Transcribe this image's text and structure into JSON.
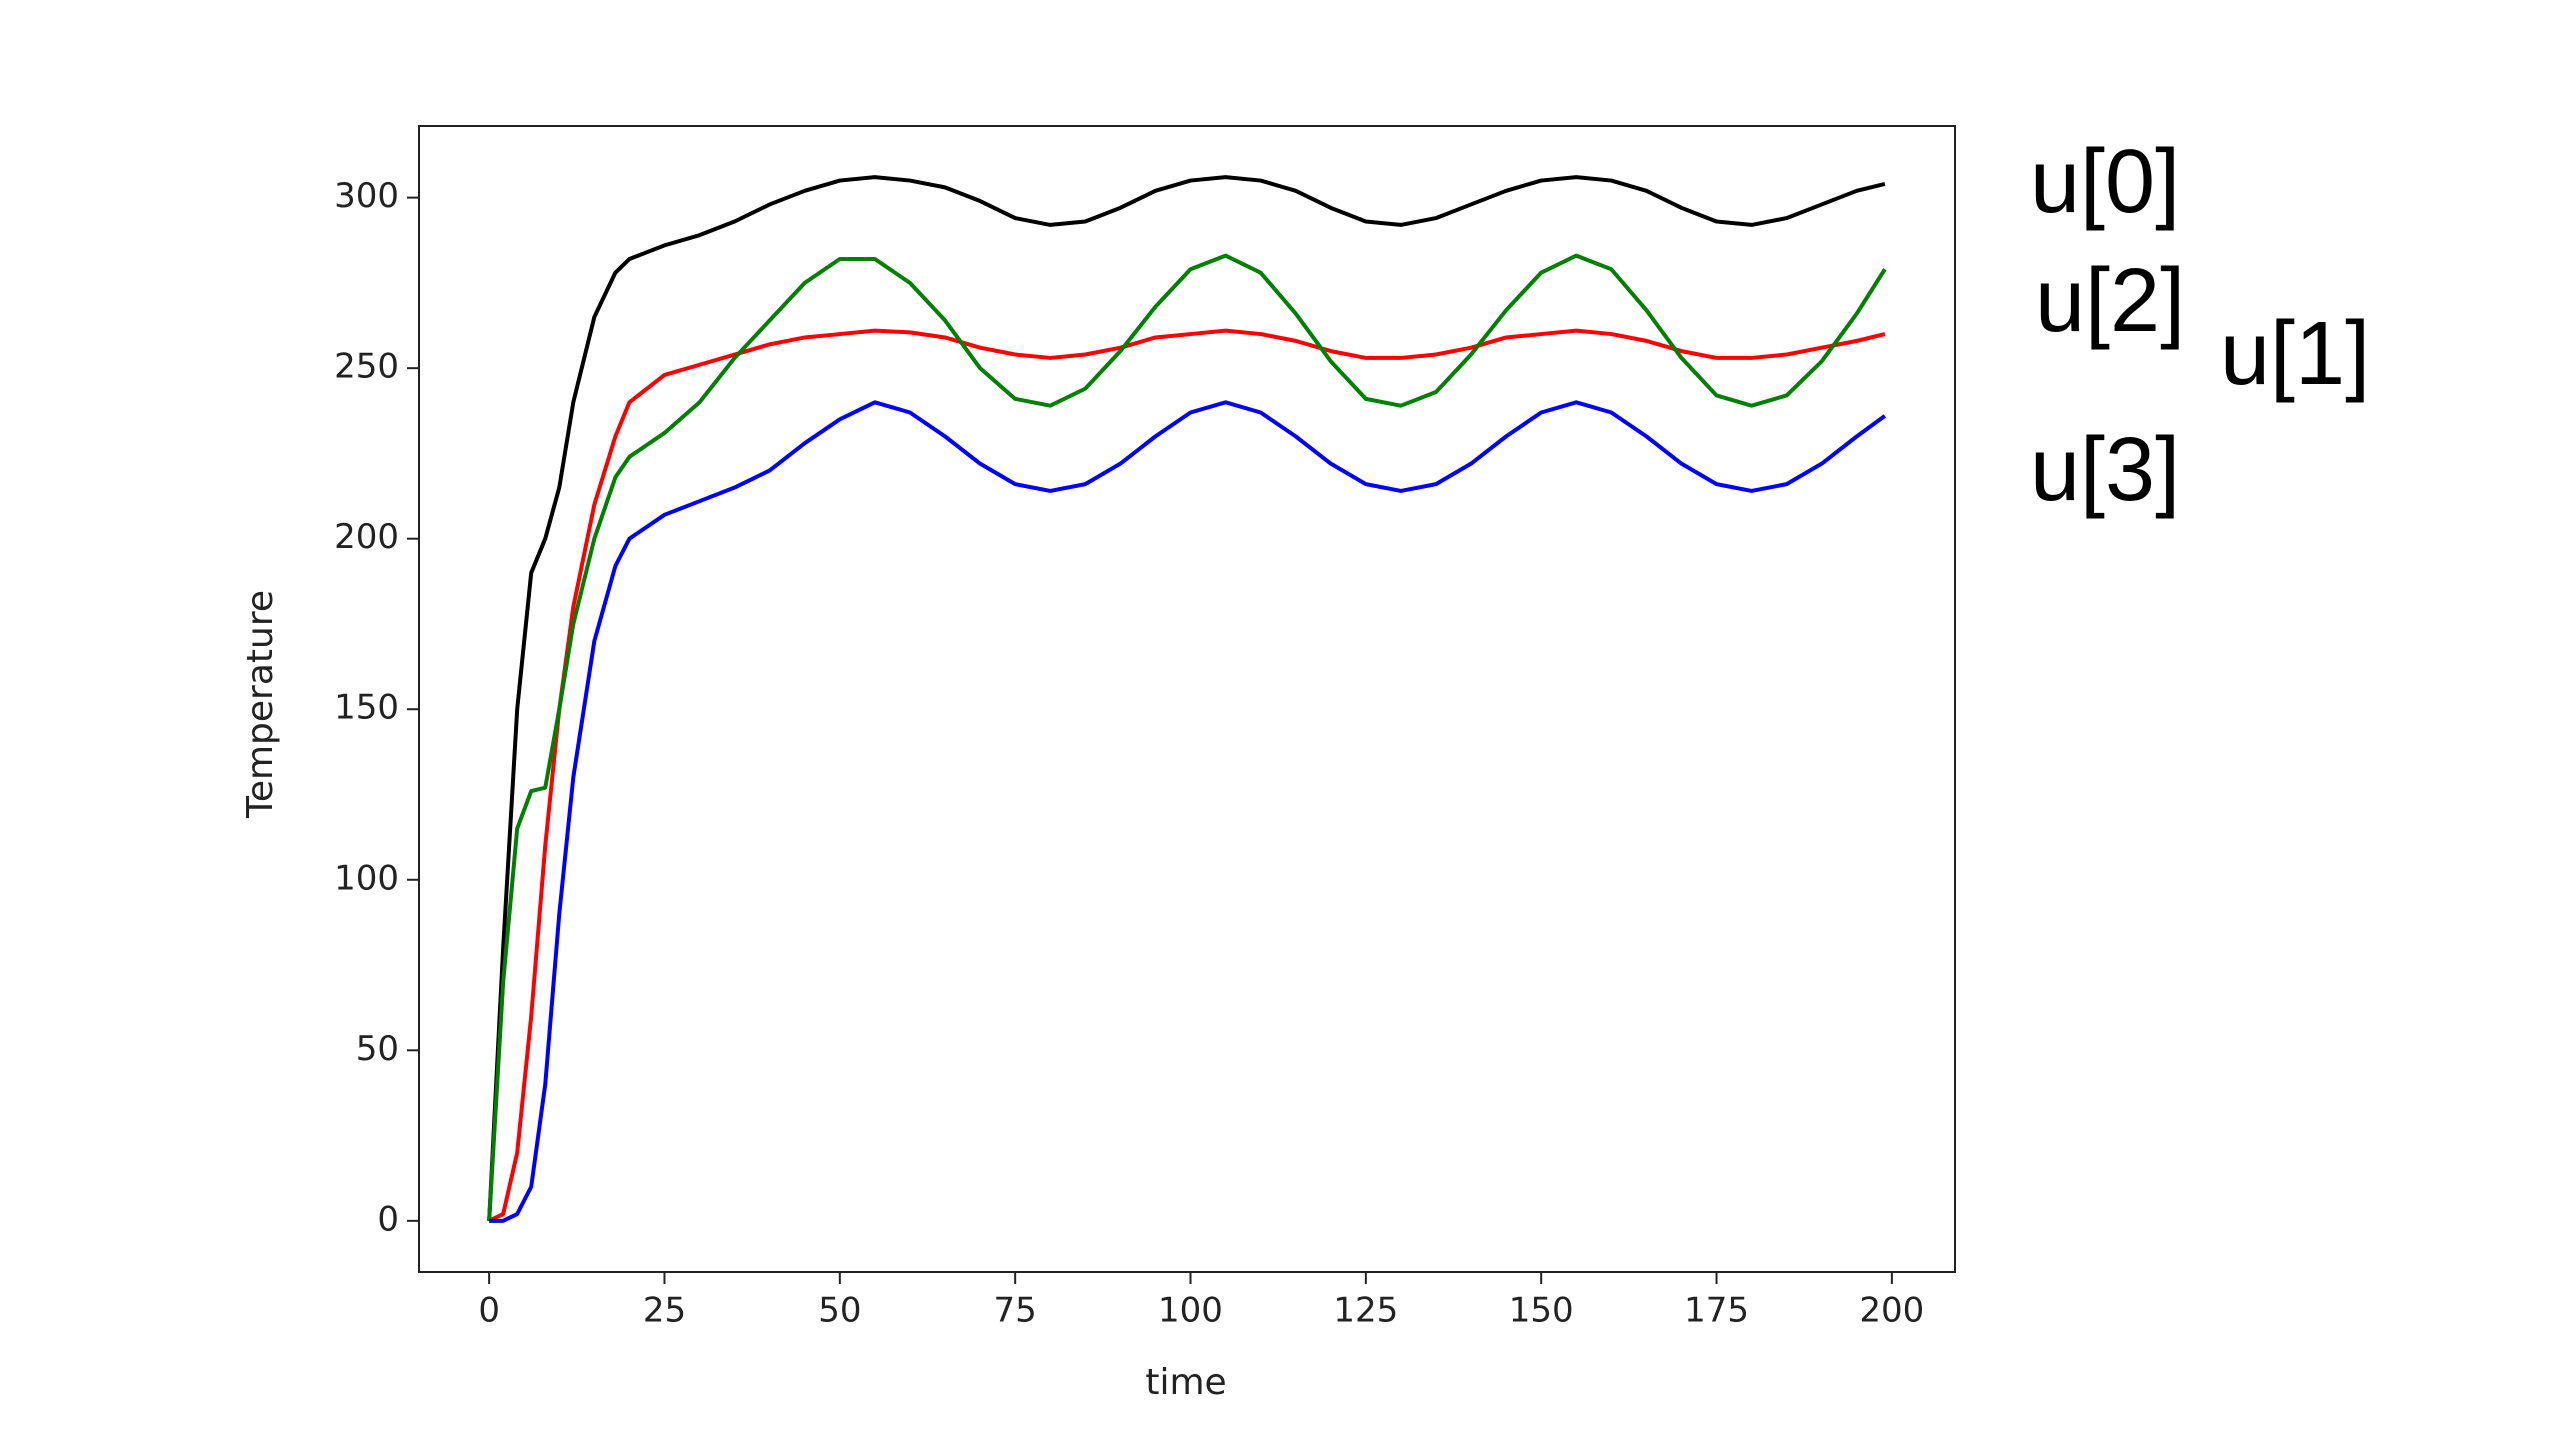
{
  "chart_data": {
    "type": "line",
    "x_label": "time",
    "y_label": "Temperature",
    "x": [
      0,
      2,
      4,
      6,
      8,
      10,
      12,
      15,
      18,
      20,
      25,
      30,
      35,
      40,
      45,
      50,
      55,
      60,
      65,
      70,
      75,
      80,
      85,
      90,
      95,
      100,
      105,
      110,
      115,
      120,
      125,
      130,
      135,
      140,
      145,
      150,
      155,
      160,
      165,
      170,
      175,
      180,
      185,
      190,
      195,
      199
    ],
    "series": [
      {
        "name": "u[0]",
        "color": "#000000",
        "values": [
          0,
          80,
          150,
          190,
          200,
          215,
          240,
          265,
          278,
          282,
          286,
          289,
          293,
          298,
          302,
          305,
          306,
          305,
          303,
          299,
          294,
          292,
          293,
          297,
          302,
          305,
          306,
          305,
          302,
          297,
          293,
          292,
          294,
          298,
          302,
          305,
          306,
          305,
          302,
          297,
          293,
          292,
          294,
          298,
          302,
          304
        ]
      },
      {
        "name": "u[1]",
        "color": "#ff0000",
        "values": [
          0,
          2,
          20,
          60,
          110,
          150,
          180,
          210,
          230,
          240,
          248,
          251,
          254,
          257,
          259,
          260,
          261,
          260.5,
          259,
          256,
          254,
          253,
          254,
          256,
          259,
          260,
          261,
          260,
          258,
          255,
          253,
          253,
          254,
          256,
          259,
          260,
          261,
          260,
          258,
          255,
          253,
          253,
          254,
          256,
          258,
          260
        ]
      },
      {
        "name": "u[2]",
        "color": "#008000",
        "values": [
          0,
          70,
          115,
          126,
          127,
          150,
          175,
          200,
          218,
          224,
          231,
          240,
          253,
          264,
          275,
          282,
          282,
          275,
          264,
          250,
          241,
          239,
          244,
          255,
          268,
          279,
          283,
          278,
          266,
          252,
          241,
          239,
          243,
          254,
          267,
          278,
          283,
          279,
          267,
          253,
          242,
          239,
          242,
          252,
          266,
          279
        ]
      },
      {
        "name": "u[3]",
        "color": "#0000ff",
        "values": [
          0,
          0,
          2,
          10,
          40,
          90,
          130,
          170,
          192,
          200,
          207,
          211,
          215,
          220,
          228,
          235,
          240,
          237,
          230,
          222,
          216,
          214,
          216,
          222,
          230,
          237,
          240,
          237,
          230,
          222,
          216,
          214,
          216,
          222,
          230,
          237,
          240,
          237,
          230,
          222,
          216,
          214,
          216,
          222,
          230,
          236
        ]
      }
    ],
    "xlim": [
      -10,
      209
    ],
    "ylim": [
      -15,
      321
    ],
    "xticks": [
      0,
      25,
      50,
      75,
      100,
      125,
      150,
      175,
      200
    ],
    "yticks": [
      0,
      50,
      100,
      150,
      200,
      250,
      300
    ]
  }
}
